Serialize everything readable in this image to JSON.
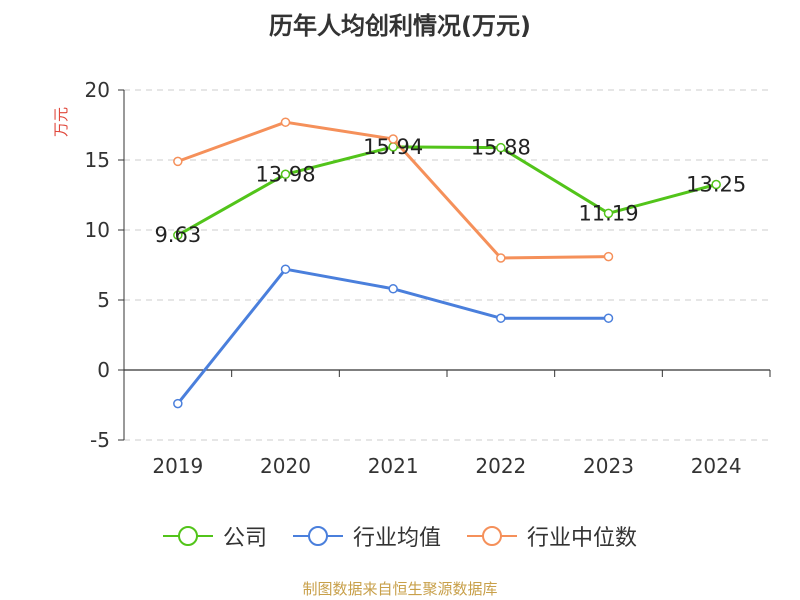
{
  "chart_data": {
    "type": "line",
    "title": "历年人均创利情况(万元)",
    "ylabel": "万元",
    "categories": [
      "2019",
      "2020",
      "2021",
      "2022",
      "2023",
      "2024"
    ],
    "ylim": [
      -5,
      20
    ],
    "yticks": [
      -5,
      0,
      5,
      10,
      15,
      20
    ],
    "grid": true,
    "legend_position": "bottom",
    "series": [
      {
        "name": "公司",
        "color": "#52c41a",
        "values": [
          9.63,
          13.98,
          15.94,
          15.88,
          11.19,
          13.25
        ],
        "show_labels": true
      },
      {
        "name": "行业均值",
        "color": "#4a7fdc",
        "values": [
          -2.4,
          7.2,
          5.8,
          3.7,
          3.7,
          null
        ],
        "show_labels": false
      },
      {
        "name": "行业中位数",
        "color": "#f5905a",
        "values": [
          14.9,
          17.7,
          16.5,
          8.0,
          8.1,
          null
        ],
        "show_labels": false
      }
    ]
  },
  "source": {
    "text": "制图数据来自恒生聚源数据库",
    "color": "#c8a04a"
  },
  "ylabel_color": "#e0483c"
}
